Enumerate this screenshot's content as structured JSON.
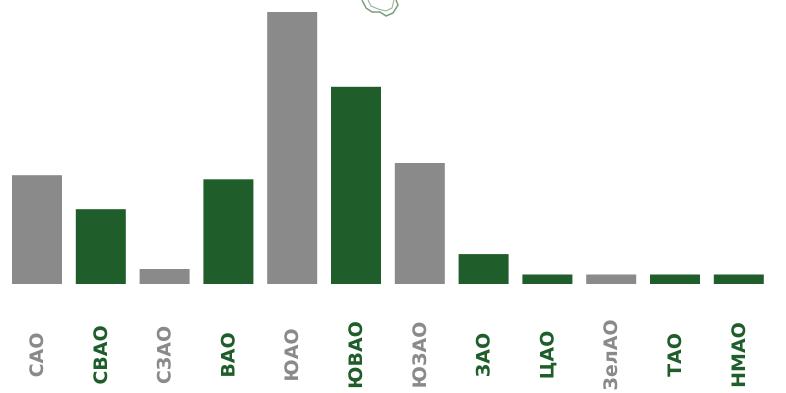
{
  "chart_data": {
    "type": "bar",
    "title": "",
    "xlabel": "",
    "ylabel": "",
    "ylim": [
      0,
      100
    ],
    "grid": false,
    "legend": "none",
    "categories": [
      "САО",
      "СВАО",
      "СЗАО",
      "ВАО",
      "ЮАО",
      "ЮВАО",
      "ЮЗАО",
      "ЗАО",
      "ЦАО",
      "ЗелАО",
      "ТАО",
      "НМАО"
    ],
    "values": [
      40,
      27.5,
      5.5,
      38.5,
      100,
      72.5,
      44.5,
      11,
      3.5,
      3.5,
      3.5,
      3.5
    ],
    "bar_colors": [
      "#8a8a8a",
      "#1f5e2a",
      "#8a8a8a",
      "#1f5e2a",
      "#8a8a8a",
      "#1f5e2a",
      "#8a8a8a",
      "#1f5e2a",
      "#1f5e2a",
      "#8a8a8a",
      "#1f5e2a",
      "#1f5e2a"
    ],
    "label_colors": [
      "#8a8a8a",
      "#1f5e2a",
      "#8a8a8a",
      "#1f5e2a",
      "#8a8a8a",
      "#1f5e2a",
      "#8a8a8a",
      "#1f5e2a",
      "#1f5e2a",
      "#8a8a8a",
      "#1f5e2a",
      "#1f5e2a"
    ]
  },
  "decoration": {
    "icon": "map-outline-icon",
    "color": "#1f5e2a"
  }
}
